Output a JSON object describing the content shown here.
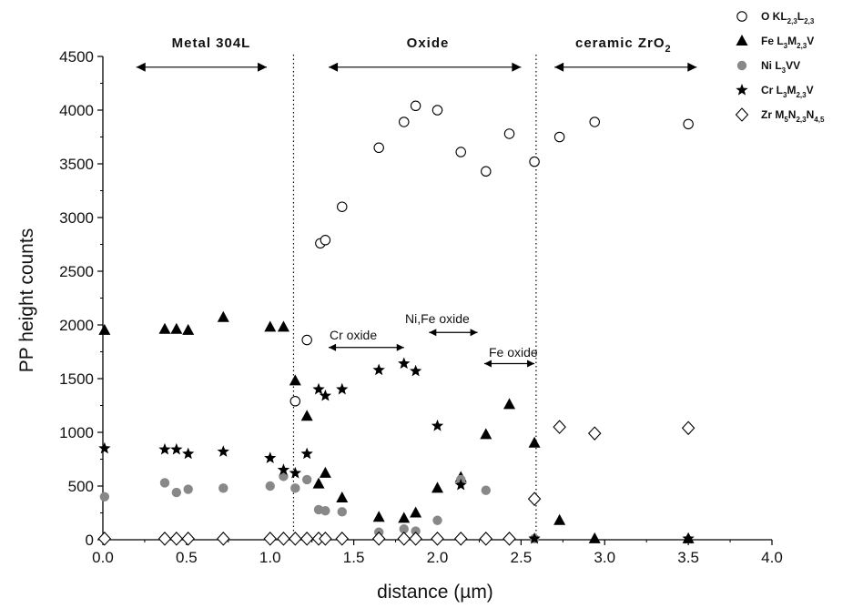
{
  "chart_data": {
    "type": "scatter",
    "xlabel": "distance (µm)",
    "ylabel": "PP height counts",
    "xlim": [
      0.0,
      4.0
    ],
    "ylim": [
      0,
      4500
    ],
    "x_ticks": [
      "0.0",
      "0.5",
      "1.0",
      "1.5",
      "2.0",
      "2.5",
      "3.0",
      "3.5",
      "4.0"
    ],
    "y_ticks": [
      "0",
      "500",
      "1000",
      "1500",
      "2000",
      "2500",
      "3000",
      "3500",
      "4000",
      "4500"
    ],
    "grid": false,
    "legend_position": "top-right",
    "series": [
      {
        "legend_main": "O KL",
        "legend_sub": "2,3",
        "legend_main2": "L",
        "legend_sub2": "2,3",
        "marker": "open-circle",
        "color": "#000000",
        "points": [
          [
            1.15,
            1290
          ],
          [
            1.22,
            1860
          ],
          [
            1.3,
            2760
          ],
          [
            1.33,
            2790
          ],
          [
            1.43,
            3100
          ],
          [
            1.65,
            3650
          ],
          [
            1.8,
            3890
          ],
          [
            1.87,
            4040
          ],
          [
            2.0,
            4000
          ],
          [
            2.14,
            3610
          ],
          [
            2.29,
            3430
          ],
          [
            2.43,
            3780
          ],
          [
            2.58,
            3520
          ],
          [
            2.73,
            3750
          ],
          [
            2.94,
            3890
          ],
          [
            3.5,
            3870
          ]
        ]
      },
      {
        "legend_main": "Fe L",
        "legend_sub": "3",
        "legend_main2": "M",
        "legend_sub2": "2,3",
        "legend_tail": "V",
        "marker": "filled-triangle",
        "color": "#000000",
        "points": [
          [
            0.01,
            1950
          ],
          [
            0.37,
            1960
          ],
          [
            0.44,
            1960
          ],
          [
            0.51,
            1950
          ],
          [
            0.72,
            2070
          ],
          [
            1.0,
            1980
          ],
          [
            1.08,
            1980
          ],
          [
            1.15,
            1480
          ],
          [
            1.22,
            1150
          ],
          [
            1.29,
            520
          ],
          [
            1.33,
            620
          ],
          [
            1.43,
            390
          ],
          [
            1.65,
            210
          ],
          [
            1.8,
            200
          ],
          [
            1.87,
            250
          ],
          [
            2.0,
            480
          ],
          [
            2.14,
            580
          ],
          [
            2.29,
            980
          ],
          [
            2.43,
            1260
          ],
          [
            2.58,
            900
          ],
          [
            2.73,
            180
          ],
          [
            2.94,
            10
          ],
          [
            3.5,
            10
          ]
        ]
      },
      {
        "legend_main": "Ni L",
        "legend_sub": "3",
        "legend_tail": "VV",
        "marker": "filled-circle",
        "color": "#888888",
        "points": [
          [
            0.01,
            400
          ],
          [
            0.37,
            530
          ],
          [
            0.44,
            440
          ],
          [
            0.51,
            470
          ],
          [
            0.72,
            480
          ],
          [
            1.0,
            500
          ],
          [
            1.08,
            590
          ],
          [
            1.15,
            480
          ],
          [
            1.22,
            560
          ],
          [
            1.29,
            280
          ],
          [
            1.33,
            270
          ],
          [
            1.43,
            260
          ],
          [
            1.65,
            70
          ],
          [
            1.8,
            100
          ],
          [
            1.87,
            80
          ],
          [
            2.0,
            180
          ],
          [
            2.14,
            560
          ],
          [
            2.29,
            460
          ],
          [
            2.58,
            10
          ]
        ]
      },
      {
        "legend_main": "Cr L",
        "legend_sub": "3",
        "legend_main2": "M",
        "legend_sub2": "2,3",
        "legend_tail": "V",
        "marker": "filled-star",
        "color": "#000000",
        "points": [
          [
            0.01,
            850
          ],
          [
            0.37,
            840
          ],
          [
            0.44,
            840
          ],
          [
            0.51,
            800
          ],
          [
            0.72,
            820
          ],
          [
            1.0,
            760
          ],
          [
            1.08,
            650
          ],
          [
            1.15,
            620
          ],
          [
            1.22,
            800
          ],
          [
            1.29,
            1400
          ],
          [
            1.33,
            1340
          ],
          [
            1.43,
            1400
          ],
          [
            1.65,
            1580
          ],
          [
            1.8,
            1640
          ],
          [
            1.87,
            1570
          ],
          [
            2.0,
            1060
          ],
          [
            2.14,
            510
          ],
          [
            2.58,
            10
          ],
          [
            3.5,
            10
          ]
        ]
      },
      {
        "legend_main": "Zr M",
        "legend_sub": "5",
        "legend_main2": "N",
        "legend_sub2": "2,3",
        "legend_main3": "N",
        "legend_sub3": "4,5",
        "marker": "open-diamond",
        "color": "#000000",
        "points": [
          [
            0.01,
            10
          ],
          [
            0.37,
            10
          ],
          [
            0.44,
            10
          ],
          [
            0.51,
            10
          ],
          [
            0.72,
            10
          ],
          [
            1.0,
            10
          ],
          [
            1.08,
            10
          ],
          [
            1.15,
            10
          ],
          [
            1.22,
            10
          ],
          [
            1.29,
            10
          ],
          [
            1.33,
            10
          ],
          [
            1.43,
            10
          ],
          [
            1.65,
            10
          ],
          [
            1.8,
            10
          ],
          [
            1.87,
            10
          ],
          [
            2.0,
            10
          ],
          [
            2.14,
            10
          ],
          [
            2.29,
            10
          ],
          [
            2.43,
            10
          ],
          [
            2.58,
            380
          ],
          [
            2.73,
            1050
          ],
          [
            2.94,
            990
          ],
          [
            3.5,
            1040
          ]
        ]
      }
    ],
    "vlines": [
      1.14,
      2.59
    ],
    "annotations": {
      "metal": {
        "text": "Metal 304L",
        "from": 0.2,
        "to": 0.98,
        "y": 4400
      },
      "oxide": {
        "text": "Oxide",
        "from": 1.35,
        "to": 2.5,
        "y": 4400
      },
      "ceramic": {
        "text": "ceramic ZrO",
        "sub": "2",
        "from": 2.7,
        "to": 3.55,
        "y": 4400
      },
      "cr_oxide": {
        "text": "Cr oxide",
        "from": 1.35,
        "to": 1.8,
        "y": 1790
      },
      "nife_oxide": {
        "text": "Ni,Fe oxide",
        "from": 1.95,
        "to": 2.24,
        "y": 1930
      },
      "fe_oxide": {
        "text": "Fe oxide",
        "from": 2.28,
        "to": 2.58,
        "y": 1640
      }
    }
  }
}
